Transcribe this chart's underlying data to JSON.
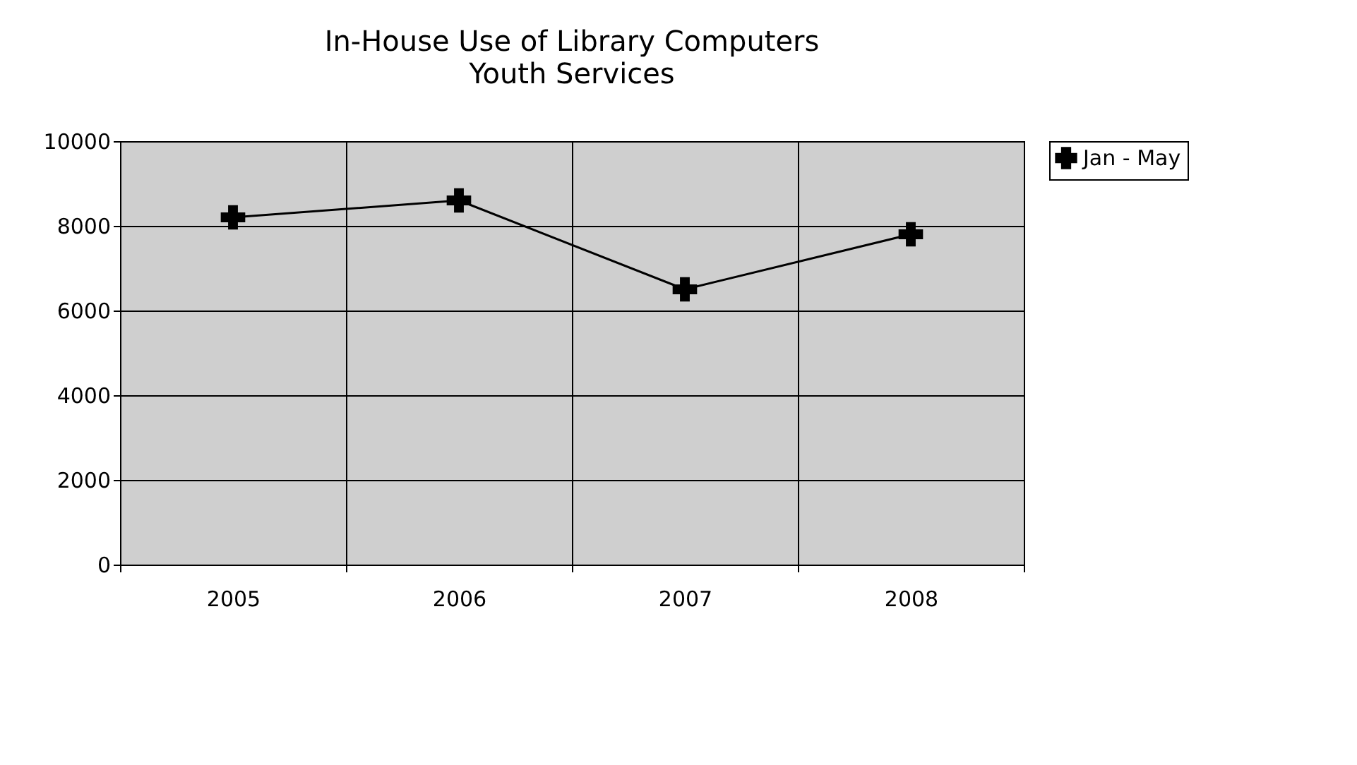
{
  "chart_data": {
    "type": "line",
    "title": "In-House Use of Library Computers",
    "subtitle": "Youth Services",
    "categories": [
      "2005",
      "2006",
      "2007",
      "2008"
    ],
    "series": [
      {
        "name": "Jan - May",
        "color": "#000000",
        "values": [
          8200,
          8600,
          6500,
          7800
        ]
      }
    ],
    "ylim": [
      0,
      10000
    ],
    "yticks": [
      0,
      2000,
      4000,
      6000,
      8000,
      10000
    ],
    "grid": true,
    "legend": "right",
    "marker": "cross",
    "line_style": "solid"
  }
}
